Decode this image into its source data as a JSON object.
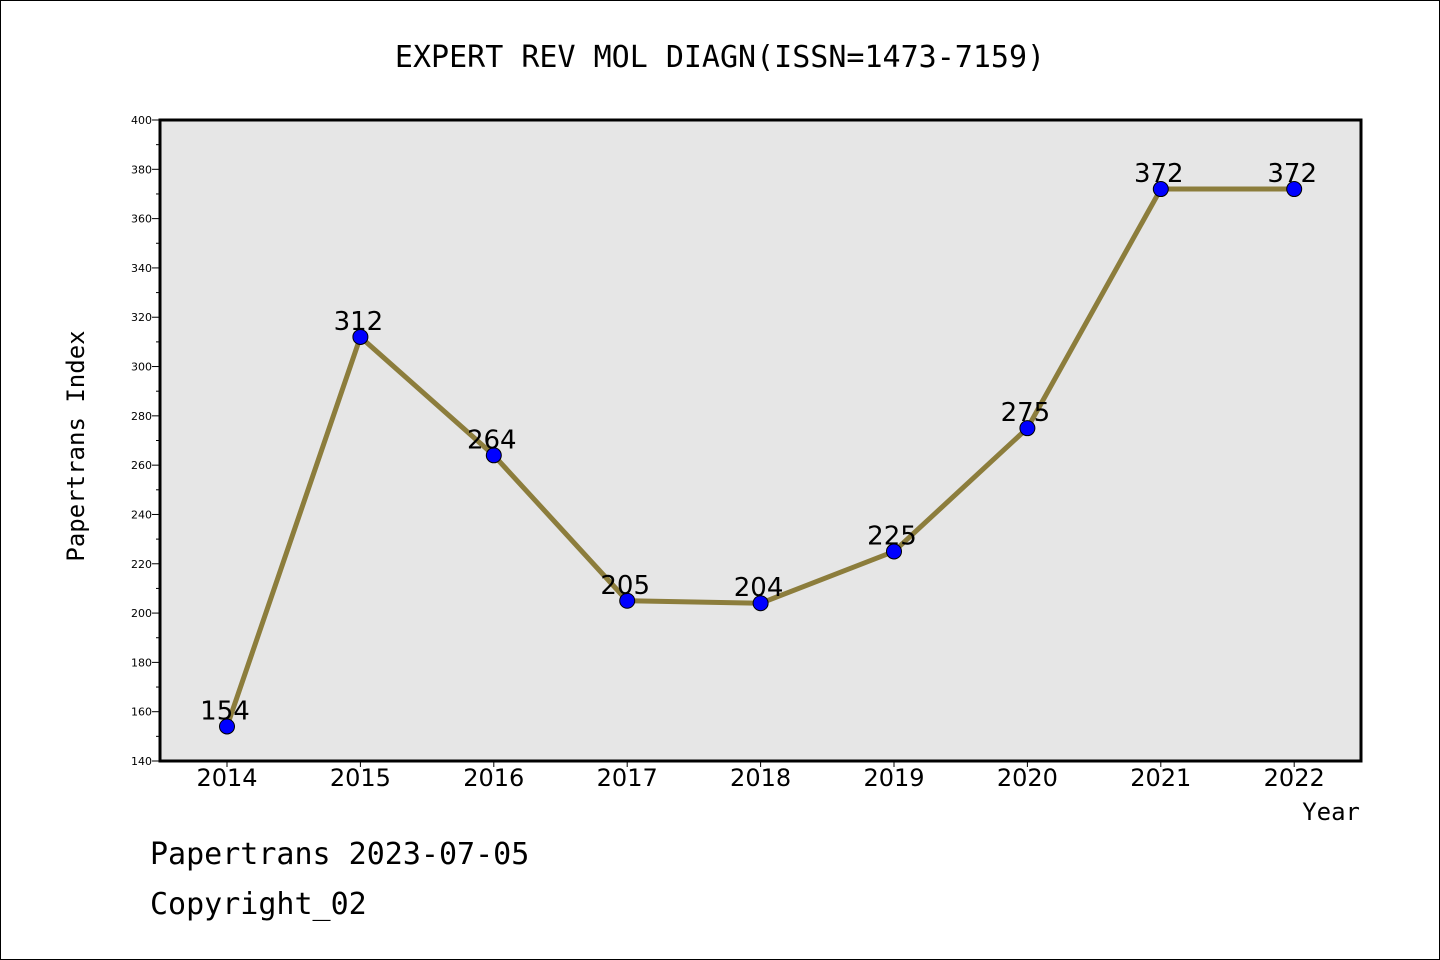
{
  "chart_data": {
    "type": "line",
    "title": "EXPERT REV MOL DIAGN(ISSN=1473-7159)",
    "xlabel": "Year",
    "ylabel": "Papertrans Index",
    "categories": [
      "2014",
      "2015",
      "2016",
      "2017",
      "2018",
      "2019",
      "2020",
      "2021",
      "2022"
    ],
    "series": [
      {
        "values": [
          154,
          312,
          264,
          205,
          204,
          225,
          275,
          372,
          372
        ]
      }
    ],
    "ylim": [
      140,
      400
    ],
    "yticks": [
      140,
      160,
      180,
      200,
      220,
      240,
      260,
      280,
      300,
      320,
      340,
      360,
      380,
      400
    ],
    "grid": false,
    "legend": "none",
    "colors": {
      "line": "#8c7d3c",
      "marker": "#0000ff",
      "plot_background": "#e6e6e6"
    }
  },
  "footer": {
    "line1": "Papertrans 2023-07-05",
    "line2": "Copyright_02"
  }
}
